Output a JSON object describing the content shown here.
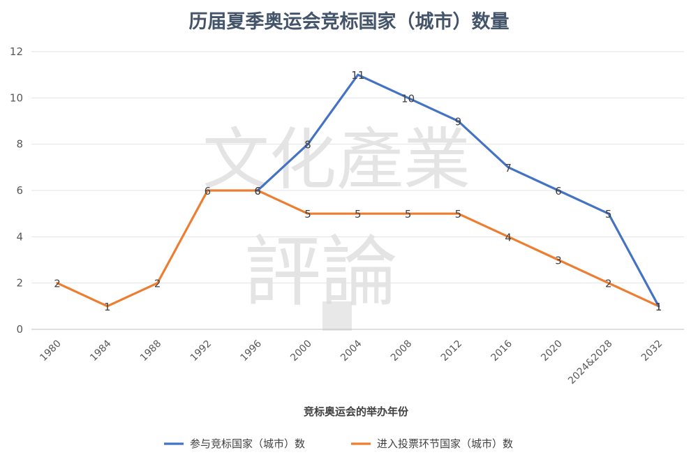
{
  "chart_data": {
    "type": "line",
    "title": "历届夏季奥运会竞标国家（城市）数量",
    "xlabel": "竞标奥运会的举办年份",
    "ylabel": "",
    "categories": [
      "1980",
      "1984",
      "1988",
      "1992",
      "1996",
      "2000",
      "2004",
      "2008",
      "2012",
      "2016",
      "2020",
      "2024&2028",
      "2032"
    ],
    "ylim": [
      0,
      12
    ],
    "yticks": [
      0,
      2,
      4,
      6,
      8,
      10,
      12
    ],
    "grid": true,
    "legend_position": "bottom",
    "series": [
      {
        "name": "参与竞标国家（城市）数",
        "color": "#4472c4",
        "values": [
          null,
          null,
          null,
          null,
          6,
          8,
          11,
          10,
          9,
          7,
          6,
          5,
          1
        ]
      },
      {
        "name": "进入投票环节国家（城市）数",
        "color": "#ed7d31",
        "values": [
          2,
          1,
          2,
          6,
          6,
          5,
          5,
          5,
          5,
          4,
          3,
          2,
          1
        ]
      }
    ]
  },
  "watermark": {
    "line1": "文化產業",
    "line2": "評論"
  }
}
